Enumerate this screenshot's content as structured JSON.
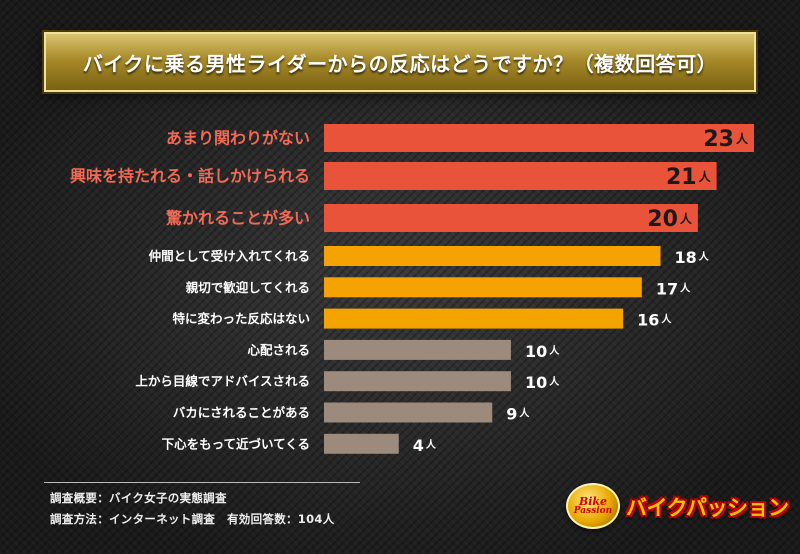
{
  "title": "バイクに乗る男性ライダーからの反応はどうですか？（複数回答可）",
  "unit": "人",
  "colors": {
    "top": "#e8533a",
    "mid": "#f5a300",
    "low": "#9c8a7c",
    "top_label": "#f26a55",
    "other_label": "#ffffff"
  },
  "chart_data": {
    "type": "bar",
    "orientation": "horizontal",
    "categories": [
      "あまり関わりがない",
      "興味を持たれる・話しかけられる",
      "驚かれることが多い",
      "仲間として受け入れてくれる",
      "親切で歓迎してくれる",
      "特に変わった反応はない",
      "心配される",
      "上から目線でアドバイスされる",
      "バカにされることがある",
      "下心をもって近づいてくる"
    ],
    "values": [
      23,
      21,
      20,
      18,
      17,
      16,
      10,
      10,
      9,
      4
    ],
    "tiers": [
      "top",
      "top",
      "top",
      "mid",
      "mid",
      "mid",
      "low",
      "low",
      "low",
      "low"
    ],
    "value_unit": "人",
    "xlim": [
      0,
      23
    ]
  },
  "footnotes": {
    "survey_overview": "調査概要：バイク女子の実態調査",
    "survey_method": "調査方法：インターネット調査　有効回答数：104人"
  },
  "logo": {
    "badge_line1": "Bike",
    "badge_line2": "Passion",
    "name": "バイクパッション"
  }
}
